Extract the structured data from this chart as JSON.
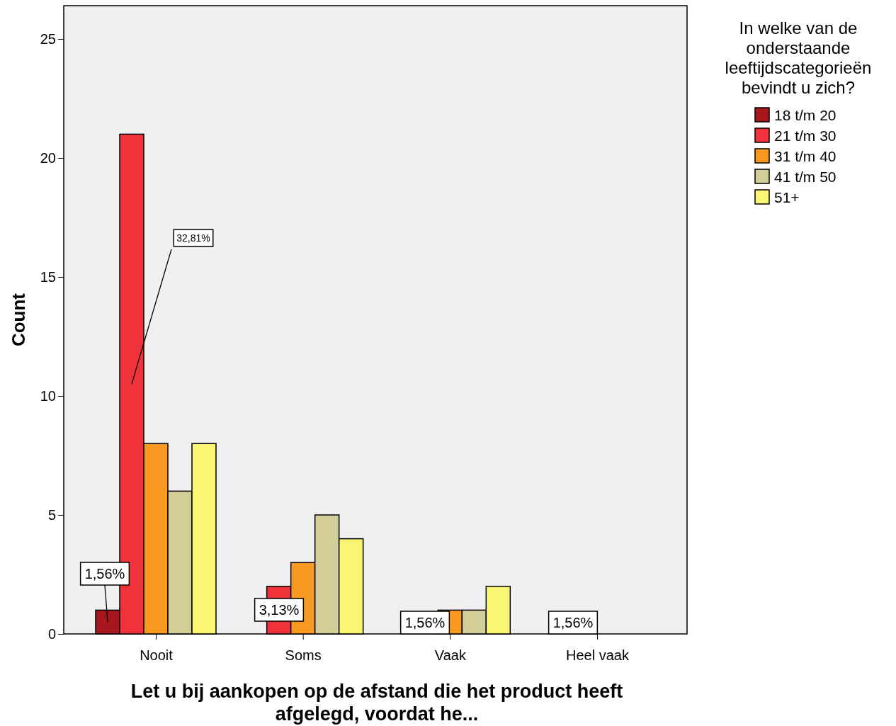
{
  "chart_data": {
    "type": "bar",
    "ylabel": "Count",
    "xlabel": "Let u bij aankopen op de afstand die het product heeft afgelegd, voordat he...",
    "legend_title": "In welke van de onderstaande leeftijdscategorieën bevindt u zich?",
    "categories": [
      "Nooit",
      "Soms",
      "Vaak",
      "Heel vaak"
    ],
    "series": [
      {
        "name": "18 t/m 20",
        "color": "#a6161c",
        "values": [
          1,
          0,
          null,
          null
        ]
      },
      {
        "name": "21 t/m 30",
        "color": "#f0323a",
        "values": [
          21,
          2,
          null,
          null
        ]
      },
      {
        "name": "31 t/m 40",
        "color": "#f79a1f",
        "values": [
          8,
          3,
          1,
          null
        ]
      },
      {
        "name": "41 t/m 50",
        "color": "#d3cd98",
        "values": [
          6,
          5,
          1,
          0
        ]
      },
      {
        "name": "51+",
        "color": "#f9f673",
        "values": [
          8,
          4,
          2,
          0
        ]
      }
    ],
    "ylim": [
      0,
      26.4
    ],
    "yticks": [
      0,
      5,
      10,
      15,
      20,
      25
    ],
    "grid": false,
    "legend": "top right",
    "annotations": [
      "1,56%",
      "32,81%",
      "3,13%",
      "1,56%",
      "1,56%"
    ]
  }
}
